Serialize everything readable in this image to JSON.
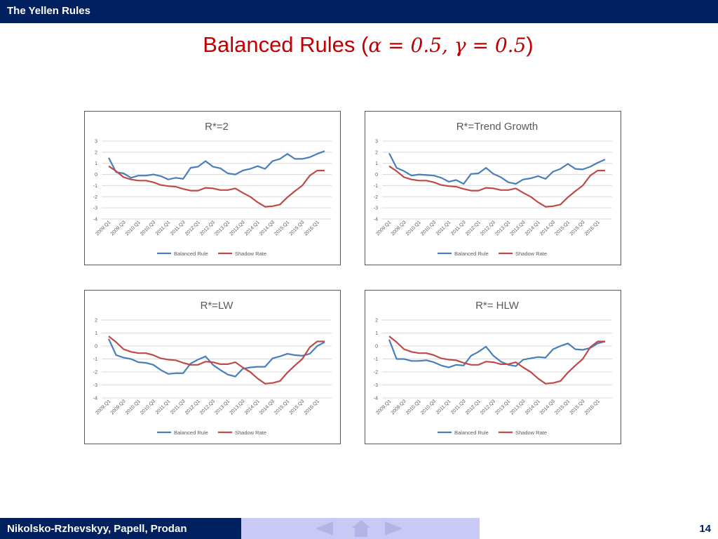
{
  "header": {
    "title": "The Yellen Rules"
  },
  "slide": {
    "title_text": "Balanced Rules (",
    "title_math": "α = 0.5, γ = 0.5",
    "title_close": ")"
  },
  "footer": {
    "authors": "Nikolsko-Rzhevskyy, Papell, Prodan",
    "page": "14"
  },
  "colors": {
    "balanced": "#4a7ebb",
    "shadow": "#be4b48",
    "bar": "#002060",
    "title": "#c00000"
  },
  "chart_data": [
    {
      "type": "line",
      "title": "R*=2",
      "ylim": [
        -4,
        3
      ],
      "yticks": [
        3,
        2,
        1,
        0,
        -1,
        -2,
        -3,
        -4
      ],
      "xtick_labels": [
        "2009.Q1",
        "2009.Q3",
        "2010.Q1",
        "2010.Q3",
        "2011.Q1",
        "2011.Q3",
        "2012.Q1",
        "2012.Q3",
        "2013.Q1",
        "2013.Q3",
        "2014.Q1",
        "2014.Q3",
        "2015.Q1",
        "2015.Q3",
        "2016.Q1"
      ],
      "series": [
        {
          "name": "Balanced Rule",
          "values": [
            1.5,
            0.2,
            0.1,
            -0.3,
            -0.1,
            -0.1,
            0.0,
            -0.15,
            -0.45,
            -0.3,
            -0.4,
            0.6,
            0.7,
            1.2,
            0.7,
            0.55,
            0.1,
            0.0,
            0.35,
            0.5,
            0.75,
            0.5,
            1.2,
            1.4,
            1.85,
            1.4,
            1.4,
            1.55,
            1.85,
            2.1
          ]
        },
        {
          "name": "Shadow Rate",
          "values": [
            0.75,
            0.3,
            -0.25,
            -0.45,
            -0.55,
            -0.55,
            -0.7,
            -0.95,
            -1.05,
            -1.1,
            -1.3,
            -1.45,
            -1.45,
            -1.2,
            -1.25,
            -1.4,
            -1.4,
            -1.25,
            -1.65,
            -2.0,
            -2.5,
            -2.9,
            -2.85,
            -2.7,
            -2.05,
            -1.5,
            -1.0,
            -0.1,
            0.35,
            0.35
          ]
        }
      ]
    },
    {
      "type": "line",
      "title": "R*=Trend Growth",
      "ylim": [
        -4,
        3
      ],
      "yticks": [
        3,
        2,
        1,
        0,
        -1,
        -2,
        -3,
        -4
      ],
      "xtick_labels": [
        "2009.Q1",
        "2009.Q3",
        "2010.Q1",
        "2010.Q3",
        "2011.Q1",
        "2011.Q3",
        "2012.Q1",
        "2012.Q3",
        "2013.Q1",
        "2013.Q3",
        "2014.Q1",
        "2014.Q3",
        "2015.Q1",
        "2015.Q3",
        "2016.Q1"
      ],
      "series": [
        {
          "name": "Balanced Rule",
          "values": [
            1.9,
            0.6,
            0.3,
            -0.1,
            0.0,
            -0.05,
            -0.1,
            -0.3,
            -0.65,
            -0.5,
            -0.85,
            0.05,
            0.1,
            0.6,
            0.05,
            -0.25,
            -0.7,
            -0.85,
            -0.45,
            -0.35,
            -0.15,
            -0.4,
            0.25,
            0.5,
            0.95,
            0.5,
            0.45,
            0.7,
            1.05,
            1.35
          ]
        },
        {
          "name": "Shadow Rate",
          "values": [
            0.75,
            0.3,
            -0.25,
            -0.45,
            -0.55,
            -0.55,
            -0.7,
            -0.95,
            -1.05,
            -1.1,
            -1.3,
            -1.45,
            -1.45,
            -1.2,
            -1.25,
            -1.4,
            -1.4,
            -1.25,
            -1.65,
            -2.0,
            -2.5,
            -2.9,
            -2.85,
            -2.7,
            -2.05,
            -1.5,
            -1.0,
            -0.1,
            0.35,
            0.35
          ]
        }
      ]
    },
    {
      "type": "line",
      "title": "R*=LW",
      "ylim": [
        -4,
        2
      ],
      "yticks": [
        2,
        1,
        0,
        -1,
        -2,
        -3,
        -4
      ],
      "xtick_labels": [
        "2009.Q1",
        "2009.Q3",
        "2010.Q1",
        "2010.Q3",
        "2011.Q1",
        "2011.Q3",
        "2012.Q1",
        "2012.Q3",
        "2013.Q1",
        "2013.Q3",
        "2014.Q1",
        "2014.Q3",
        "2015.Q1",
        "2015.Q3",
        "2016.Q1"
      ],
      "series": [
        {
          "name": "Balanced Rule",
          "values": [
            0.55,
            -0.7,
            -0.9,
            -1.0,
            -1.25,
            -1.3,
            -1.45,
            -1.85,
            -2.15,
            -2.1,
            -2.1,
            -1.35,
            -1.05,
            -0.8,
            -1.45,
            -1.85,
            -2.2,
            -2.35,
            -1.75,
            -1.65,
            -1.6,
            -1.6,
            -0.95,
            -0.8,
            -0.6,
            -0.7,
            -0.75,
            -0.6,
            0.0,
            0.3
          ]
        },
        {
          "name": "Shadow Rate",
          "values": [
            0.75,
            0.3,
            -0.25,
            -0.45,
            -0.55,
            -0.55,
            -0.7,
            -0.95,
            -1.05,
            -1.1,
            -1.3,
            -1.45,
            -1.45,
            -1.2,
            -1.25,
            -1.4,
            -1.4,
            -1.25,
            -1.65,
            -2.0,
            -2.5,
            -2.9,
            -2.85,
            -2.7,
            -2.05,
            -1.5,
            -1.0,
            -0.1,
            0.35,
            0.35
          ]
        }
      ]
    },
    {
      "type": "line",
      "title": "R*= HLW",
      "ylim": [
        -4,
        2
      ],
      "yticks": [
        2,
        1,
        0,
        -1,
        -2,
        -3,
        -4
      ],
      "xtick_labels": [
        "2009.Q1",
        "2009.Q3",
        "2010.Q1",
        "2010.Q3",
        "2011.Q1",
        "2011.Q3",
        "2012.Q1",
        "2012.Q3",
        "2013.Q1",
        "2013.Q3",
        "2014.Q1",
        "2014.Q3",
        "2015.Q1",
        "2015.Q3",
        "2016.Q1"
      ],
      "series": [
        {
          "name": "Balanced Rule",
          "values": [
            0.5,
            -1.0,
            -1.0,
            -1.15,
            -1.15,
            -1.1,
            -1.25,
            -1.5,
            -1.65,
            -1.45,
            -1.5,
            -0.75,
            -0.45,
            -0.05,
            -0.75,
            -1.2,
            -1.45,
            -1.55,
            -1.05,
            -0.95,
            -0.85,
            -0.9,
            -0.25,
            0.0,
            0.2,
            -0.25,
            -0.3,
            -0.15,
            0.2,
            0.35
          ]
        },
        {
          "name": "Shadow Rate",
          "values": [
            0.75,
            0.3,
            -0.25,
            -0.45,
            -0.55,
            -0.55,
            -0.7,
            -0.95,
            -1.05,
            -1.1,
            -1.3,
            -1.45,
            -1.45,
            -1.2,
            -1.25,
            -1.4,
            -1.4,
            -1.25,
            -1.65,
            -2.0,
            -2.5,
            -2.9,
            -2.85,
            -2.7,
            -2.05,
            -1.5,
            -1.0,
            -0.1,
            0.35,
            0.35
          ]
        }
      ]
    }
  ]
}
